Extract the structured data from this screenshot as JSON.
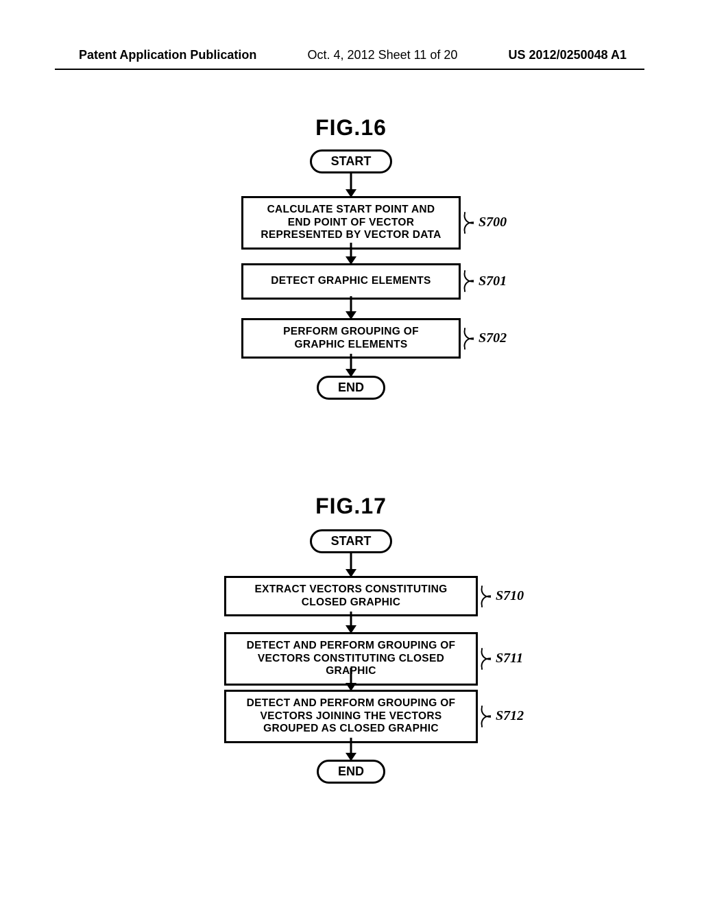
{
  "header": {
    "left": "Patent Application Publication",
    "center": "Oct. 4, 2012  Sheet 11 of 20",
    "right": "US 2012/0250048 A1"
  },
  "fig16": {
    "title": "FIG.16",
    "start": "START",
    "end": "END",
    "steps": [
      {
        "text": "CALCULATE START POINT AND\nEND POINT OF VECTOR\nREPRESENTED BY VECTOR DATA",
        "label": "S700"
      },
      {
        "text": "DETECT GRAPHIC ELEMENTS",
        "label": "S701"
      },
      {
        "text": "PERFORM GROUPING OF\nGRAPHIC ELEMENTS",
        "label": "S702"
      }
    ]
  },
  "fig17": {
    "title": "FIG.17",
    "start": "START",
    "end": "END",
    "steps": [
      {
        "text": "EXTRACT VECTORS CONSTITUTING\nCLOSED GRAPHIC",
        "label": "S710"
      },
      {
        "text": "DETECT AND PERFORM GROUPING OF\nVECTORS CONSTITUTING CLOSED GRAPHIC",
        "label": "S711"
      },
      {
        "text": "DETECT AND PERFORM GROUPING OF\nVECTORS JOINING THE VECTORS\nGROUPED AS CLOSED GRAPHIC",
        "label": "S712"
      }
    ]
  },
  "style": {
    "process_width_16": 320,
    "process_width_17": 370,
    "arrow_len_short": 34,
    "arrow_len_med": 30,
    "colors": {
      "fg": "#000000",
      "bg": "#ffffff"
    }
  }
}
